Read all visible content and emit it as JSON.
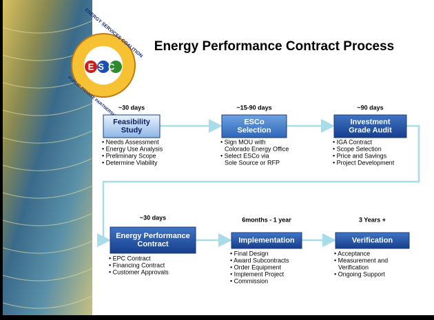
{
  "title": "Energy Performance Contract Process",
  "logo": {
    "acronym": "ESC",
    "name": "ENERGY SERVICES COALITION",
    "tagline": "PUBLIC PRIVATE PARTNERSHIP"
  },
  "steps": [
    {
      "duration": "~30 days",
      "label": [
        "Feasibility",
        "Study"
      ],
      "bullets": [
        [
          "• Needs Assessment"
        ],
        [
          "• Energy Use Analysis"
        ],
        [
          "• Preliminary Scope"
        ],
        [
          "• Determine Viability"
        ]
      ]
    },
    {
      "duration": "~15-90 days",
      "label": [
        "ESCo",
        "Selection"
      ],
      "bullets": [
        [
          "• Sign MOU with",
          "Colorado Energy Office"
        ],
        [
          "• Select ESCo via",
          "Sole Source or RFP"
        ]
      ]
    },
    {
      "duration": "~90 days",
      "label": [
        "Investment",
        "Grade Audit"
      ],
      "bullets": [
        [
          "• IGA Contract"
        ],
        [
          "• Scope Selection"
        ],
        [
          "• Price and Savings"
        ],
        [
          "• Project Development"
        ]
      ]
    },
    {
      "duration": "~30 days",
      "label": [
        "Energy Performance",
        "Contract"
      ],
      "bullets": [
        [
          "• EPC Contract"
        ],
        [
          "• Financing Contract"
        ],
        [
          "• Customer Approvals"
        ]
      ]
    },
    {
      "duration": "6months - 1 year",
      "label": [
        "Implementation"
      ],
      "bullets": [
        [
          "• Final Design"
        ],
        [
          "• Award Subcontracts"
        ],
        [
          "• Order Equipment"
        ],
        [
          "• Implement Project"
        ],
        [
          "• Commission"
        ]
      ]
    },
    {
      "duration": "3 Years +",
      "label": [
        "Verification"
      ],
      "bullets": [
        [
          "• Acceptance"
        ],
        [
          "• Measurement and",
          "Verification"
        ],
        [
          "• Ongoing Support"
        ]
      ]
    }
  ]
}
